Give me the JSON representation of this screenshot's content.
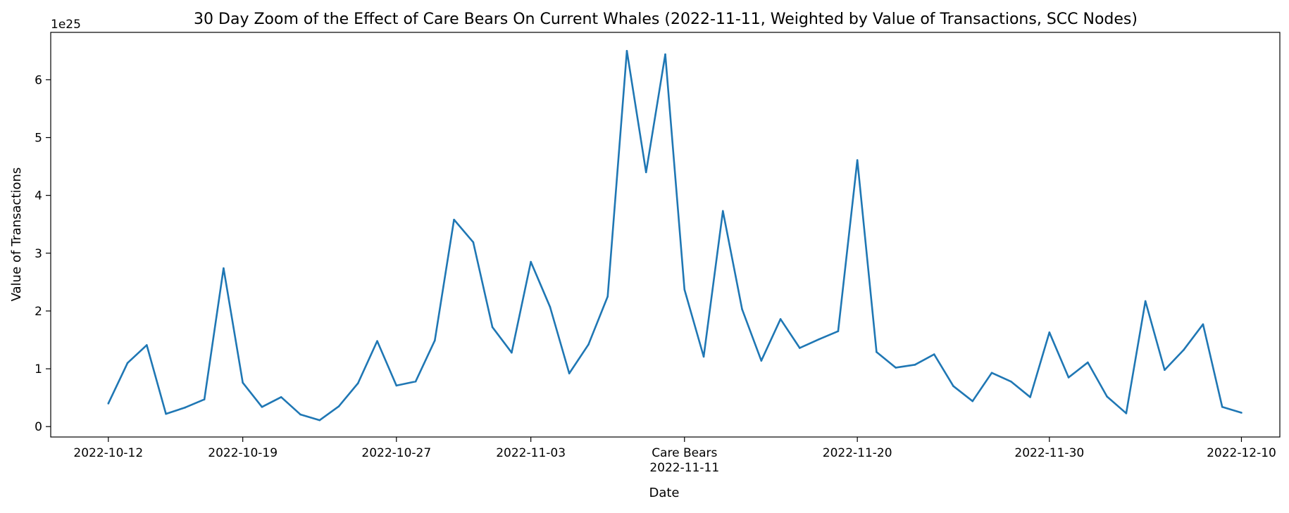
{
  "chart_data": {
    "type": "line",
    "title": "30 Day Zoom of the Effect of Care Bears On Current Whales (2022-11-11, Weighted by Value of Transactions, SCC Nodes)",
    "xlabel": "Date",
    "ylabel": "Value of Transactions",
    "y_offset_label": "1e25",
    "y_scale_exponent": 25,
    "ylim": [
      -0.18,
      6.82
    ],
    "yticks": [
      0,
      1,
      2,
      3,
      4,
      5,
      6
    ],
    "xlim": [
      "2022-10-09",
      "2022-12-12"
    ],
    "xticks": [
      {
        "date": "2022-10-12",
        "label": "2022-10-12"
      },
      {
        "date": "2022-10-19",
        "label": "2022-10-19"
      },
      {
        "date": "2022-10-27",
        "label": "2022-10-27"
      },
      {
        "date": "2022-11-03",
        "label": "2022-11-03"
      },
      {
        "date": "2022-11-11",
        "label": "Care Bears\n2022-11-11"
      },
      {
        "date": "2022-11-20",
        "label": "2022-11-20"
      },
      {
        "date": "2022-11-30",
        "label": "2022-11-30"
      },
      {
        "date": "2022-12-10",
        "label": "2022-12-10"
      }
    ],
    "grid": false,
    "line_color": "#1f77b4",
    "series": [
      {
        "x": [
          "2022-10-12",
          "2022-10-13",
          "2022-10-14",
          "2022-10-15",
          "2022-10-16",
          "2022-10-17",
          "2022-10-18",
          "2022-10-19",
          "2022-10-20",
          "2022-10-21",
          "2022-10-22",
          "2022-10-23",
          "2022-10-24",
          "2022-10-25",
          "2022-10-26",
          "2022-10-27",
          "2022-10-28",
          "2022-10-29",
          "2022-10-30",
          "2022-10-31",
          "2022-11-01",
          "2022-11-02",
          "2022-11-03",
          "2022-11-04",
          "2022-11-05",
          "2022-11-06",
          "2022-11-07",
          "2022-11-08",
          "2022-11-09",
          "2022-11-10",
          "2022-11-11",
          "2022-11-12",
          "2022-11-13",
          "2022-11-14",
          "2022-11-15",
          "2022-11-16",
          "2022-11-17",
          "2022-11-18",
          "2022-11-19",
          "2022-11-20",
          "2022-11-21",
          "2022-11-22",
          "2022-11-23",
          "2022-11-24",
          "2022-11-25",
          "2022-11-26",
          "2022-11-27",
          "2022-11-28",
          "2022-11-29",
          "2022-11-30",
          "2022-12-01",
          "2022-12-02",
          "2022-12-03",
          "2022-12-04",
          "2022-12-05",
          "2022-12-06",
          "2022-12-07",
          "2022-12-08",
          "2022-12-09",
          "2022-12-10"
        ],
        "values": [
          0.4,
          1.1,
          1.41,
          0.22,
          0.33,
          0.47,
          2.74,
          0.76,
          0.34,
          0.51,
          0.21,
          0.11,
          0.35,
          0.75,
          1.48,
          0.71,
          0.78,
          1.49,
          3.58,
          3.19,
          1.72,
          1.28,
          2.85,
          2.07,
          0.92,
          1.42,
          2.25,
          6.5,
          4.4,
          6.44,
          2.37,
          1.21,
          3.73,
          2.03,
          1.14,
          1.86,
          1.36,
          1.51,
          1.65,
          4.61,
          1.29,
          1.02,
          1.07,
          1.25,
          0.7,
          0.44,
          0.93,
          0.78,
          0.51,
          1.63,
          0.85,
          1.11,
          0.52,
          0.23,
          2.17,
          0.98,
          1.33,
          1.77,
          0.34,
          0.24
        ]
      }
    ]
  }
}
